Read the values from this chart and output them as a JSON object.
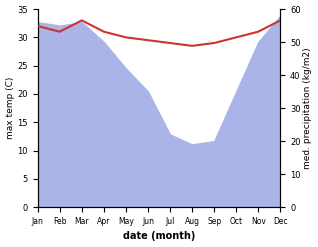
{
  "months": [
    "Jan",
    "Feb",
    "Mar",
    "Apr",
    "May",
    "Jun",
    "Jul",
    "Aug",
    "Sep",
    "Oct",
    "Nov",
    "Dec"
  ],
  "temp": [
    32,
    31,
    33,
    31,
    30,
    29.5,
    29,
    28.5,
    29,
    30,
    31,
    33
  ],
  "precip": [
    56,
    55,
    56,
    50,
    42,
    35,
    22,
    19,
    20,
    35,
    50,
    58
  ],
  "temp_ylim": [
    0,
    35
  ],
  "precip_ylim": [
    0,
    60
  ],
  "temp_color": "#cc3333",
  "precip_fill_color": "#aab4e8",
  "xlabel": "date (month)",
  "ylabel_left": "max temp (C)",
  "ylabel_right": "med. precipitation (kg/m2)",
  "temp_yticks": [
    0,
    5,
    10,
    15,
    20,
    25,
    30,
    35
  ],
  "precip_yticks": [
    0,
    10,
    20,
    30,
    40,
    50,
    60
  ]
}
